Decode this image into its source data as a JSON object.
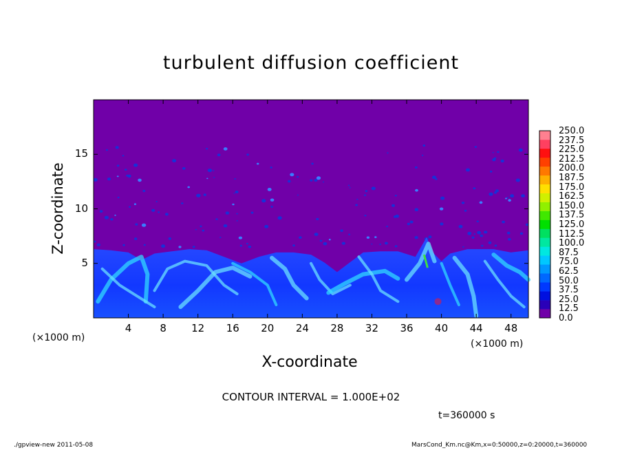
{
  "figure": {
    "title": "turbulent diffusion coefficient",
    "contour_interval": "CONTOUR INTERVAL = 1.000E+02",
    "time_label": "t=360000 s",
    "footer_left": "./gpview-new   2011-05-08",
    "footer_right": "MarsCond_Km.nc@Km,x=0:50000,z=0:20000,t=360000",
    "x_unit_left": "(×1000 m)",
    "x_unit_right": "(×1000 m)"
  },
  "chart_data": {
    "type": "heatmap",
    "title": "turbulent diffusion coefficient",
    "xlabel": "X-coordinate",
    "ylabel": "Z-coordinate",
    "x_unit": "×1000 m",
    "xlim": [
      0,
      50
    ],
    "ylim": [
      0,
      20
    ],
    "xticks": [
      4,
      8,
      12,
      16,
      20,
      24,
      28,
      32,
      36,
      40,
      44,
      48
    ],
    "yticks": [
      5,
      10,
      15
    ],
    "colorbar": {
      "levels": [
        0.0,
        12.5,
        25.0,
        37.5,
        50.0,
        62.5,
        75.0,
        87.5,
        100.0,
        112.5,
        125.0,
        137.5,
        150.0,
        162.5,
        175.0,
        187.5,
        200.0,
        212.5,
        225.0,
        237.5,
        250.0
      ],
      "labels": [
        "0.0",
        "12.5",
        "25.0",
        "37.5",
        "50.0",
        "62.5",
        "75.0",
        "87.5",
        "100.0",
        "112.5",
        "125.0",
        "137.5",
        "150.0",
        "162.5",
        "175.0",
        "187.5",
        "200.0",
        "212.5",
        "225.0",
        "237.5",
        "250.0"
      ],
      "colors": [
        "#7000a8",
        "#2a00b8",
        "#0010e0",
        "#0038ff",
        "#0068ff",
        "#0098ff",
        "#00c8ff",
        "#00e8e0",
        "#00e8a0",
        "#00e060",
        "#00e000",
        "#40e800",
        "#90f000",
        "#d0f000",
        "#ffe000",
        "#ffb000",
        "#ff7800",
        "#ff4000",
        "#ff1010",
        "#ff4060",
        "#ff8090"
      ]
    },
    "boundary_layer_top_z": 6,
    "background_value": 0.0,
    "background_color": "#7000a8",
    "grid": false
  }
}
